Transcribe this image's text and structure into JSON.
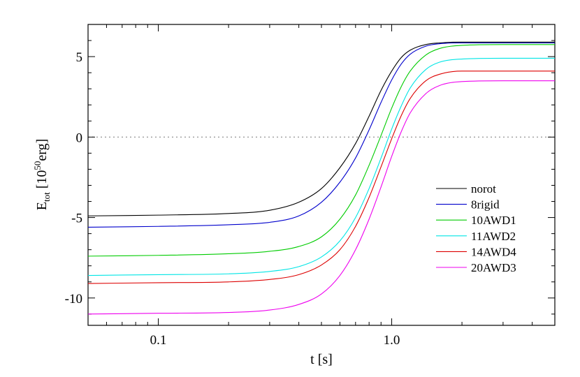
{
  "chart_data": {
    "type": "line",
    "xlabel": "t [s]",
    "ylabel": {
      "base": "E",
      "sub": "tot",
      "open": " [10",
      "sup": "50",
      "close": "erg]"
    },
    "xscale": "log",
    "xlim": [
      0.05,
      5.0
    ],
    "ylim": [
      -11.7,
      7.0
    ],
    "x_ticks": [
      {
        "value": 0.1,
        "label": "0.1"
      },
      {
        "value": 1.0,
        "label": "1.0"
      }
    ],
    "y_ticks": [
      {
        "value": 5,
        "label": "5"
      },
      {
        "value": 0,
        "label": "0"
      },
      {
        "value": -5,
        "label": "-5"
      },
      {
        "value": -10,
        "label": "-10"
      }
    ],
    "reference_line": {
      "y": 0,
      "style": "dotted",
      "color": "#888888"
    },
    "grid": false,
    "legend": {
      "position": "bottom-right"
    },
    "x": [
      0.05,
      0.1,
      0.2,
      0.3,
      0.4,
      0.5,
      0.6,
      0.7,
      0.8,
      0.9,
      1.0,
      1.1,
      1.2,
      1.4,
      1.6,
      2.0,
      3.0,
      5.0
    ],
    "series": [
      {
        "name": "norot",
        "color": "#000000",
        "values": [
          -4.9,
          -4.85,
          -4.75,
          -4.55,
          -4.05,
          -3.2,
          -1.9,
          -0.4,
          1.3,
          2.9,
          4.1,
          4.95,
          5.4,
          5.75,
          5.85,
          5.9,
          5.9,
          5.9
        ]
      },
      {
        "name": "8rigid",
        "color": "#0000cc",
        "values": [
          -5.6,
          -5.55,
          -5.45,
          -5.3,
          -4.9,
          -4.05,
          -2.8,
          -1.3,
          0.45,
          2.15,
          3.55,
          4.55,
          5.15,
          5.65,
          5.8,
          5.85,
          5.85,
          5.85
        ]
      },
      {
        "name": "10AWD1",
        "color": "#00cc00",
        "values": [
          -7.4,
          -7.35,
          -7.25,
          -7.1,
          -6.8,
          -6.2,
          -5.1,
          -3.6,
          -1.75,
          0.1,
          1.8,
          3.15,
          4.1,
          5.1,
          5.5,
          5.7,
          5.75,
          5.75
        ]
      },
      {
        "name": "11AWD2",
        "color": "#00e5e5",
        "values": [
          -8.6,
          -8.55,
          -8.5,
          -8.35,
          -8.05,
          -7.45,
          -6.45,
          -5.0,
          -3.2,
          -1.3,
          0.5,
          1.95,
          3.05,
          4.2,
          4.65,
          4.85,
          4.9,
          4.9
        ]
      },
      {
        "name": "14AWD4",
        "color": "#dd0000",
        "values": [
          -9.1,
          -9.05,
          -9.0,
          -8.85,
          -8.55,
          -7.95,
          -7.0,
          -5.55,
          -3.75,
          -1.85,
          -0.1,
          1.35,
          2.4,
          3.5,
          3.9,
          4.1,
          4.1,
          4.1
        ]
      },
      {
        "name": "20AWD3",
        "color": "#ee00ee",
        "values": [
          -11.0,
          -10.95,
          -10.9,
          -10.75,
          -10.4,
          -9.75,
          -8.6,
          -7.0,
          -5.1,
          -3.1,
          -1.2,
          0.35,
          1.5,
          2.7,
          3.2,
          3.45,
          3.5,
          3.5
        ]
      }
    ]
  }
}
